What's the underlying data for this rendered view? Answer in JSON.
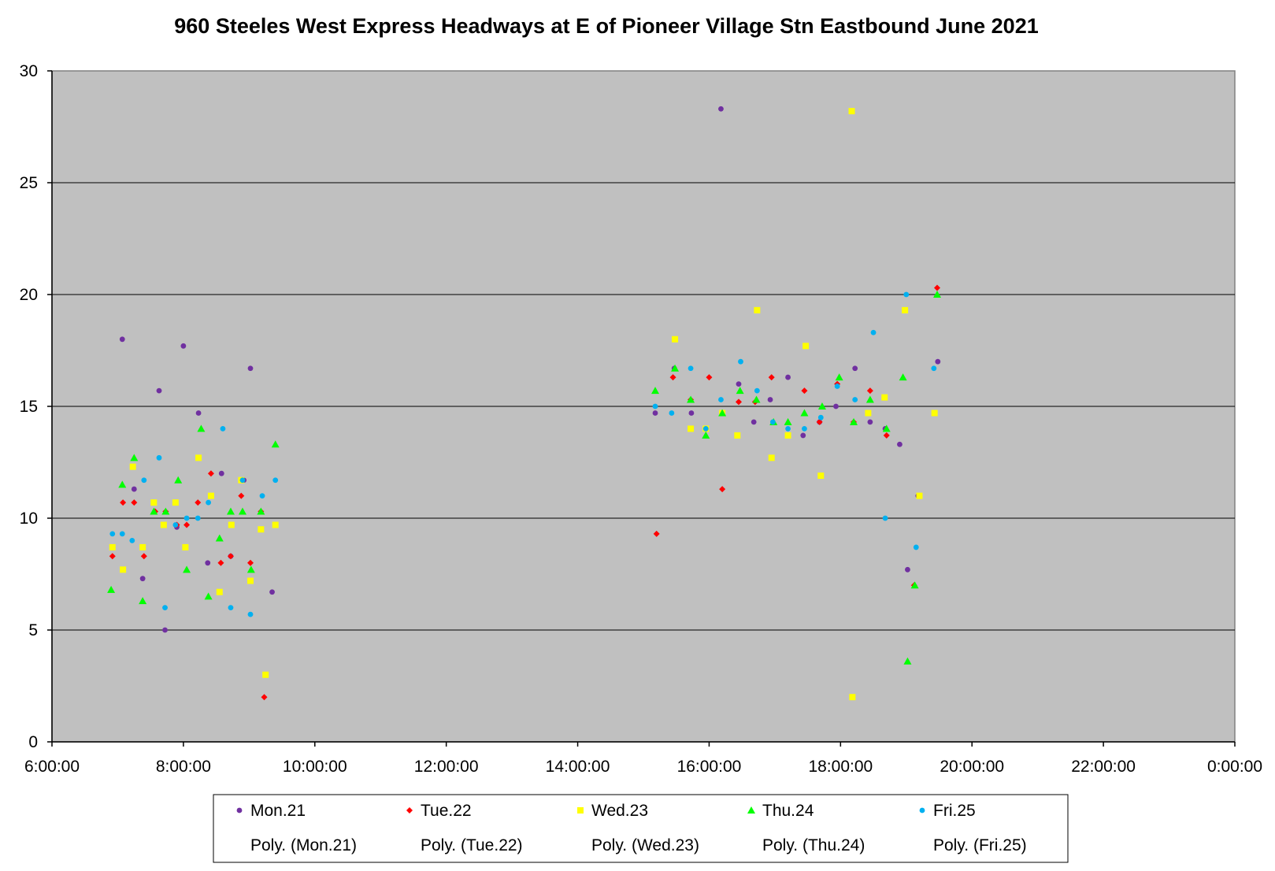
{
  "chart_data": {
    "type": "scatter",
    "title": "960 Steeles West Express Headways at E of Pioneer Village Stn Eastbound June 2021",
    "xlabel": "",
    "ylabel": "",
    "x_unit": "hours",
    "xlim": [
      6,
      24
    ],
    "ylim": [
      0,
      30
    ],
    "x_ticks": [
      "6:00:00",
      "8:00:00",
      "10:00:00",
      "12:00:00",
      "14:00:00",
      "16:00:00",
      "18:00:00",
      "20:00:00",
      "22:00:00",
      "0:00:00"
    ],
    "y_ticks": [
      "0",
      "5",
      "10",
      "15",
      "20",
      "25",
      "30"
    ],
    "grid": "horizontal",
    "plot_background": "#c0c0c0",
    "legend_position": "bottom",
    "trendline_labels": [
      "Poly. (Mon.21)",
      "Poly. (Tue.22)",
      "Poly. (Wed.23)",
      "Poly. (Thu.24)",
      "Poly. (Fri.25)"
    ],
    "series": [
      {
        "name": "Mon.21",
        "color": "#7030a0",
        "marker": "circle",
        "points": [
          [
            7.07,
            18.0
          ],
          [
            7.25,
            11.3
          ],
          [
            7.38,
            7.3
          ],
          [
            7.63,
            15.7
          ],
          [
            7.72,
            5.0
          ],
          [
            7.9,
            9.6
          ],
          [
            8.0,
            17.7
          ],
          [
            8.23,
            14.7
          ],
          [
            8.37,
            8.0
          ],
          [
            8.58,
            12.0
          ],
          [
            8.72,
            8.3
          ],
          [
            8.92,
            11.7
          ],
          [
            9.02,
            16.7
          ],
          [
            9.35,
            6.7
          ],
          [
            15.18,
            14.7
          ],
          [
            15.47,
            16.7
          ],
          [
            15.73,
            14.7
          ],
          [
            16.18,
            28.3
          ],
          [
            16.45,
            16.0
          ],
          [
            16.68,
            14.3
          ],
          [
            16.93,
            15.3
          ],
          [
            17.2,
            16.3
          ],
          [
            17.43,
            13.7
          ],
          [
            17.68,
            14.3
          ],
          [
            17.93,
            15.0
          ],
          [
            18.22,
            16.7
          ],
          [
            18.45,
            14.3
          ],
          [
            18.68,
            14.0
          ],
          [
            18.9,
            13.3
          ],
          [
            19.02,
            7.7
          ],
          [
            19.18,
            11.0
          ],
          [
            19.48,
            17.0
          ]
        ]
      },
      {
        "name": "Tue.22",
        "color": "#ff0000",
        "marker": "diamond",
        "points": [
          [
            6.92,
            8.3
          ],
          [
            7.08,
            10.7
          ],
          [
            7.25,
            10.7
          ],
          [
            7.4,
            8.3
          ],
          [
            7.57,
            10.3
          ],
          [
            7.73,
            10.3
          ],
          [
            7.9,
            9.7
          ],
          [
            8.05,
            9.7
          ],
          [
            8.22,
            10.7
          ],
          [
            8.42,
            12.0
          ],
          [
            8.57,
            8.0
          ],
          [
            8.72,
            8.3
          ],
          [
            8.88,
            11.0
          ],
          [
            9.02,
            8.0
          ],
          [
            9.18,
            10.3
          ],
          [
            9.23,
            2.0
          ],
          [
            15.2,
            9.3
          ],
          [
            15.45,
            16.3
          ],
          [
            15.72,
            15.3
          ],
          [
            16.0,
            16.3
          ],
          [
            16.2,
            11.3
          ],
          [
            16.45,
            15.2
          ],
          [
            16.7,
            15.2
          ],
          [
            16.95,
            16.3
          ],
          [
            17.45,
            15.7
          ],
          [
            17.68,
            14.3
          ],
          [
            17.95,
            16.0
          ],
          [
            18.2,
            14.3
          ],
          [
            18.45,
            15.7
          ],
          [
            18.7,
            13.7
          ],
          [
            19.12,
            7.0
          ],
          [
            19.47,
            20.3
          ]
        ]
      },
      {
        "name": "Wed.23",
        "color": "#ffff00",
        "marker": "square",
        "points": [
          [
            6.92,
            8.7
          ],
          [
            7.08,
            7.7
          ],
          [
            7.23,
            12.3
          ],
          [
            7.38,
            8.7
          ],
          [
            7.55,
            10.7
          ],
          [
            7.7,
            9.7
          ],
          [
            7.88,
            10.7
          ],
          [
            8.03,
            8.7
          ],
          [
            8.23,
            12.7
          ],
          [
            8.42,
            11.0
          ],
          [
            8.55,
            6.7
          ],
          [
            8.73,
            9.7
          ],
          [
            8.88,
            11.7
          ],
          [
            9.02,
            7.2
          ],
          [
            9.18,
            9.5
          ],
          [
            9.25,
            3.0
          ],
          [
            9.4,
            9.7
          ],
          [
            15.48,
            18.0
          ],
          [
            15.72,
            14.0
          ],
          [
            15.95,
            14.0
          ],
          [
            16.2,
            14.7
          ],
          [
            16.43,
            13.7
          ],
          [
            16.73,
            19.3
          ],
          [
            16.95,
            12.7
          ],
          [
            17.2,
            13.7
          ],
          [
            17.47,
            17.7
          ],
          [
            17.7,
            11.9
          ],
          [
            18.17,
            28.2
          ],
          [
            18.18,
            2.0
          ],
          [
            18.42,
            14.7
          ],
          [
            18.67,
            15.4
          ],
          [
            18.98,
            19.3
          ],
          [
            19.2,
            11.0
          ],
          [
            19.43,
            14.7
          ]
        ]
      },
      {
        "name": "Thu.24",
        "color": "#00ff00",
        "marker": "triangle",
        "points": [
          [
            6.9,
            6.8
          ],
          [
            7.07,
            11.5
          ],
          [
            7.25,
            12.7
          ],
          [
            7.38,
            6.3
          ],
          [
            7.55,
            10.3
          ],
          [
            7.73,
            10.3
          ],
          [
            7.92,
            11.7
          ],
          [
            8.05,
            7.7
          ],
          [
            8.27,
            14.0
          ],
          [
            8.38,
            6.5
          ],
          [
            8.55,
            9.1
          ],
          [
            8.72,
            10.3
          ],
          [
            8.9,
            10.3
          ],
          [
            9.03,
            7.7
          ],
          [
            9.18,
            10.3
          ],
          [
            9.4,
            13.3
          ],
          [
            15.18,
            15.7
          ],
          [
            15.48,
            16.7
          ],
          [
            15.72,
            15.3
          ],
          [
            15.95,
            13.7
          ],
          [
            16.2,
            14.7
          ],
          [
            16.47,
            15.7
          ],
          [
            16.72,
            15.3
          ],
          [
            16.98,
            14.3
          ],
          [
            17.2,
            14.3
          ],
          [
            17.45,
            14.7
          ],
          [
            17.72,
            15.0
          ],
          [
            17.98,
            16.3
          ],
          [
            18.2,
            14.3
          ],
          [
            18.45,
            15.3
          ],
          [
            18.7,
            14.0
          ],
          [
            18.95,
            16.3
          ],
          [
            19.02,
            3.6
          ],
          [
            19.13,
            7.0
          ],
          [
            19.47,
            20.0
          ]
        ]
      },
      {
        "name": "Fri.25",
        "color": "#00b0f0",
        "marker": "circle",
        "points": [
          [
            6.92,
            9.3
          ],
          [
            7.07,
            9.3
          ],
          [
            7.22,
            9.0
          ],
          [
            7.4,
            11.7
          ],
          [
            7.63,
            12.7
          ],
          [
            7.72,
            6.0
          ],
          [
            7.88,
            9.7
          ],
          [
            8.05,
            10.0
          ],
          [
            8.22,
            10.0
          ],
          [
            8.38,
            10.7
          ],
          [
            8.6,
            14.0
          ],
          [
            8.72,
            6.0
          ],
          [
            8.9,
            11.7
          ],
          [
            9.02,
            5.7
          ],
          [
            9.2,
            11.0
          ],
          [
            9.4,
            11.7
          ],
          [
            15.18,
            15.0
          ],
          [
            15.43,
            14.7
          ],
          [
            15.72,
            16.7
          ],
          [
            15.95,
            14.0
          ],
          [
            16.18,
            15.3
          ],
          [
            16.48,
            17.0
          ],
          [
            16.73,
            15.7
          ],
          [
            16.97,
            14.3
          ],
          [
            17.2,
            14.0
          ],
          [
            17.45,
            14.0
          ],
          [
            17.7,
            14.5
          ],
          [
            17.95,
            15.9
          ],
          [
            18.22,
            15.3
          ],
          [
            18.5,
            18.3
          ],
          [
            18.68,
            10.0
          ],
          [
            19.0,
            20.0
          ],
          [
            19.15,
            8.7
          ],
          [
            19.42,
            16.7
          ]
        ]
      }
    ]
  }
}
